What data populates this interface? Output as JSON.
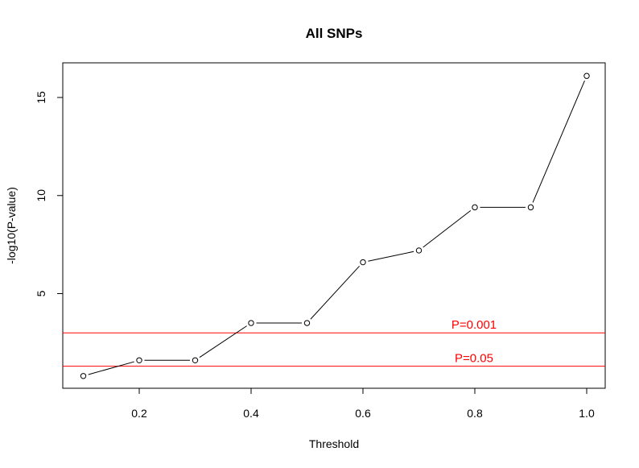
{
  "chart_data": {
    "type": "line",
    "title": "All SNPs",
    "xlabel": "Threshold",
    "ylabel": "-log10(P-value)",
    "xlim": [
      0.1,
      1.0
    ],
    "ylim": [
      0.77,
      16.13
    ],
    "x_ticks": [
      0.2,
      0.4,
      0.6,
      0.8,
      1.0
    ],
    "x_tick_labels": [
      "0.2",
      "0.4",
      "0.6",
      "0.8",
      "1.0"
    ],
    "y_ticks": [
      5,
      10,
      15
    ],
    "y_tick_labels": [
      "5",
      "10",
      "15"
    ],
    "grid": false,
    "series": [
      {
        "x": [
          0.1,
          0.2,
          0.3,
          0.4,
          0.5,
          0.6,
          0.7,
          0.8,
          0.9,
          1.0
        ],
        "values": [
          0.8,
          1.6,
          1.6,
          3.5,
          3.5,
          6.6,
          7.2,
          9.4,
          9.4,
          16.1
        ],
        "color": "#000000",
        "marker": "open-circle"
      }
    ],
    "reference_lines": [
      {
        "y": 3,
        "label": "P=0.001",
        "color": "#ff0000"
      },
      {
        "y": 1.30103,
        "label": "P=0.05",
        "color": "#ff0000"
      }
    ]
  }
}
